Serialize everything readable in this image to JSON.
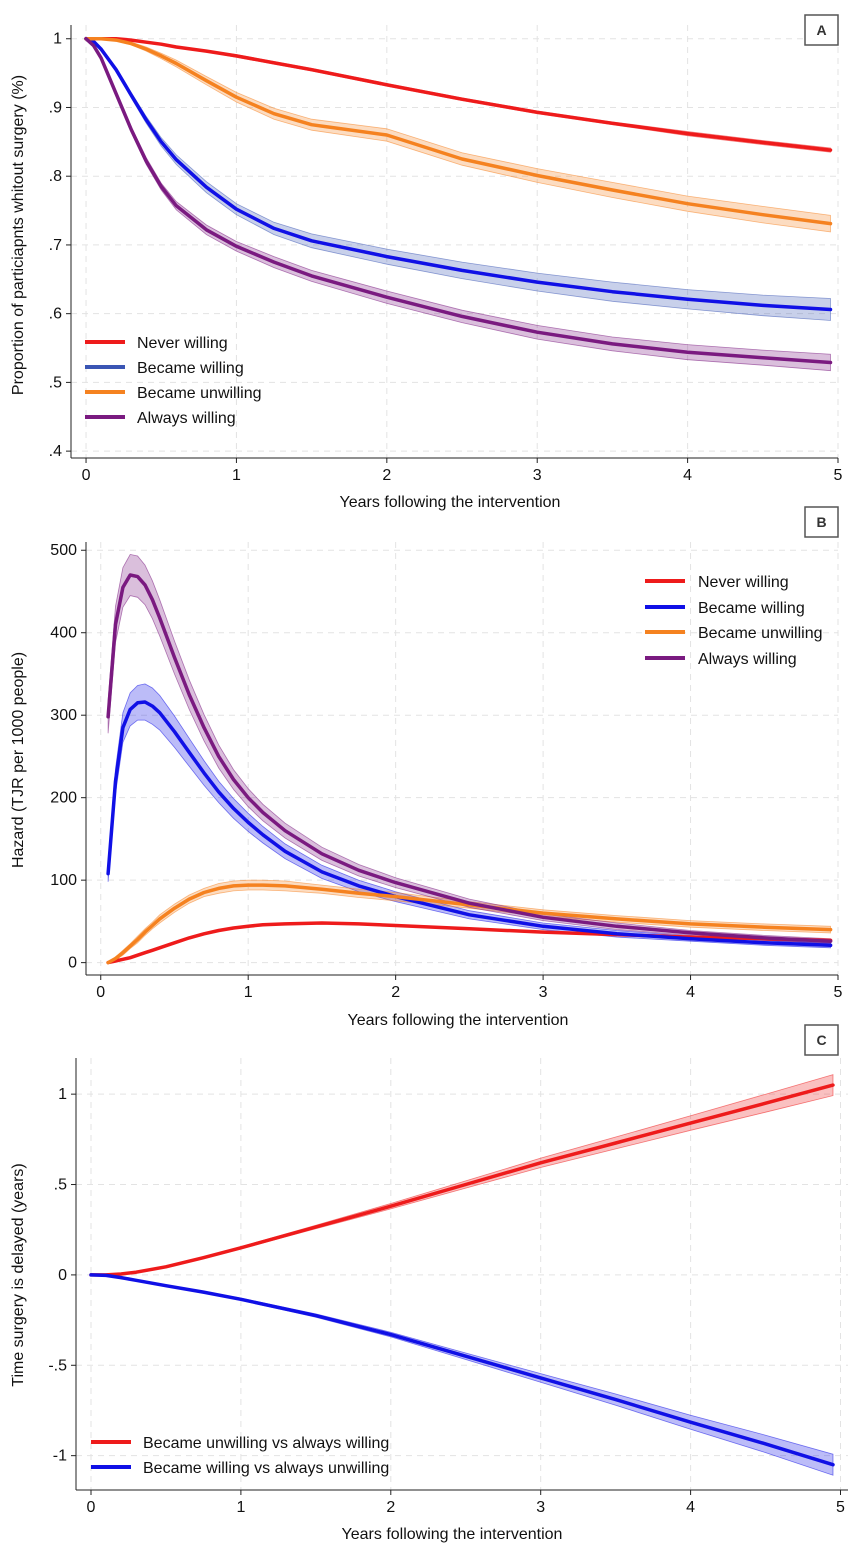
{
  "chart_data": [
    {
      "panel": "A",
      "type": "line",
      "xlabel": "Years following the intervention",
      "ylabel": "Proportion of particiapnts whitout surgery (%)",
      "xlim": [
        -0.1,
        5.0
      ],
      "ylim": [
        0.39,
        1.02
      ],
      "xticks": [
        0,
        1,
        2,
        3,
        4,
        5
      ],
      "xtick_labels": [
        "0",
        "1",
        "2",
        "3",
        "4",
        "5"
      ],
      "yticks": [
        0.4,
        0.5,
        0.6,
        0.7,
        0.8,
        0.9,
        1.0
      ],
      "ytick_labels": [
        ".4",
        ".5",
        ".6",
        ".7",
        ".8",
        ".9",
        "1"
      ],
      "grid": true,
      "legend_position": "bottom-left",
      "x": [
        0,
        0.05,
        0.1,
        0.2,
        0.3,
        0.4,
        0.5,
        0.6,
        0.8,
        1.0,
        1.25,
        1.5,
        2.0,
        2.5,
        3.0,
        3.5,
        4.0,
        4.5,
        4.95
      ],
      "series": [
        {
          "name": "Never willing",
          "color": "#ee1b1b",
          "values": [
            1.0,
            1.0,
            1.0,
            1.0,
            0.998,
            0.995,
            0.992,
            0.988,
            0.982,
            0.975,
            0.965,
            0.955,
            0.933,
            0.912,
            0.893,
            0.877,
            0.862,
            0.849,
            0.838
          ],
          "ci_halfwidth": [
            0,
            0,
            0,
            0,
            0.001,
            0.001,
            0.001,
            0.001,
            0.001,
            0.002,
            0.002,
            0.002,
            0.002,
            0.002,
            0.002,
            0.002,
            0.003,
            0.003,
            0.003
          ]
        },
        {
          "name": "Became willing",
          "color": "#3a55b4",
          "line_color": "#1010e6",
          "values": [
            1.0,
            0.996,
            0.985,
            0.955,
            0.918,
            0.882,
            0.85,
            0.824,
            0.784,
            0.752,
            0.724,
            0.706,
            0.683,
            0.663,
            0.646,
            0.632,
            0.621,
            0.612,
            0.606
          ],
          "ci_halfwidth": [
            0,
            0.001,
            0.002,
            0.003,
            0.004,
            0.005,
            0.006,
            0.007,
            0.008,
            0.008,
            0.009,
            0.01,
            0.011,
            0.012,
            0.013,
            0.014,
            0.014,
            0.015,
            0.016
          ]
        },
        {
          "name": "Became unwilling",
          "color": "#f58220",
          "values": [
            1.0,
            1.0,
            1.0,
            0.998,
            0.993,
            0.985,
            0.975,
            0.964,
            0.939,
            0.915,
            0.891,
            0.875,
            0.86,
            0.825,
            0.801,
            0.78,
            0.76,
            0.744,
            0.731
          ],
          "ci_halfwidth": [
            0,
            0,
            0,
            0.001,
            0.002,
            0.003,
            0.004,
            0.005,
            0.006,
            0.007,
            0.008,
            0.008,
            0.009,
            0.009,
            0.01,
            0.011,
            0.011,
            0.012,
            0.012
          ]
        },
        {
          "name": "Always willing",
          "color": "#7a1a80",
          "values": [
            1.0,
            0.99,
            0.972,
            0.92,
            0.868,
            0.822,
            0.785,
            0.757,
            0.722,
            0.698,
            0.675,
            0.655,
            0.624,
            0.596,
            0.573,
            0.556,
            0.544,
            0.536,
            0.529
          ],
          "ci_halfwidth": [
            0,
            0.001,
            0.002,
            0.003,
            0.004,
            0.005,
            0.005,
            0.006,
            0.007,
            0.007,
            0.008,
            0.008,
            0.009,
            0.009,
            0.01,
            0.01,
            0.011,
            0.011,
            0.012
          ]
        }
      ]
    },
    {
      "panel": "B",
      "type": "line",
      "xlabel": "Years following the intervention",
      "ylabel": "Hazard (TJR per 1000 people)",
      "xlim": [
        -0.1,
        5.0
      ],
      "ylim": [
        -15,
        510
      ],
      "xticks": [
        0,
        1,
        2,
        3,
        4,
        5
      ],
      "xtick_labels": [
        "0",
        "1",
        "2",
        "3",
        "4",
        "5"
      ],
      "yticks": [
        0,
        100,
        200,
        300,
        400,
        500
      ],
      "ytick_labels": [
        "0",
        "100",
        "200",
        "300",
        "400",
        "500"
      ],
      "grid": true,
      "legend_position": "top-right",
      "x": [
        0.05,
        0.1,
        0.15,
        0.2,
        0.25,
        0.3,
        0.35,
        0.4,
        0.5,
        0.6,
        0.7,
        0.8,
        0.9,
        1.0,
        1.1,
        1.25,
        1.5,
        1.75,
        2.0,
        2.5,
        3.0,
        3.5,
        4.0,
        4.5,
        4.95
      ],
      "series": [
        {
          "name": "Never willing",
          "color": "#ee1b1b",
          "values": [
            0,
            2,
            4,
            6,
            9,
            12,
            15,
            18,
            24,
            30,
            35,
            39,
            42,
            44,
            46,
            47,
            48,
            47,
            45,
            41,
            37,
            34,
            31,
            29,
            27
          ],
          "ci_halfwidth": [
            0,
            0,
            0,
            0,
            0,
            1,
            1,
            1,
            1,
            1,
            1,
            1,
            1,
            1,
            1,
            1,
            1,
            1,
            1,
            1,
            1,
            1,
            1,
            1,
            1
          ]
        },
        {
          "name": "Became willing",
          "color": "#1010e6",
          "values": [
            108,
            220,
            285,
            307,
            315,
            316,
            311,
            303,
            280,
            255,
            230,
            207,
            187,
            170,
            155,
            135,
            110,
            93,
            80,
            58,
            44,
            35,
            29,
            24,
            21
          ],
          "ci_halfwidth": [
            10,
            15,
            18,
            20,
            21,
            22,
            22,
            21,
            19,
            17,
            15,
            13,
            12,
            11,
            10,
            9,
            8,
            7,
            6,
            5,
            4,
            4,
            3,
            3,
            3
          ]
        },
        {
          "name": "Became unwilling",
          "color": "#f58220",
          "values": [
            0,
            5,
            12,
            20,
            28,
            37,
            45,
            53,
            66,
            77,
            85,
            90,
            93,
            94,
            94,
            93,
            89,
            84,
            80,
            70,
            60,
            53,
            47,
            43,
            40
          ],
          "ci_halfwidth": [
            1,
            2,
            3,
            3,
            4,
            4,
            4,
            5,
            5,
            5,
            5,
            6,
            6,
            6,
            6,
            6,
            5,
            5,
            5,
            4,
            4,
            4,
            4,
            4,
            4
          ]
        },
        {
          "name": "Always willing",
          "color": "#7a1a80",
          "values": [
            298,
            410,
            455,
            470,
            468,
            458,
            440,
            418,
            370,
            325,
            285,
            250,
            222,
            200,
            182,
            160,
            132,
            112,
            97,
            72,
            55,
            44,
            36,
            30,
            26
          ],
          "ci_halfwidth": [
            20,
            22,
            24,
            25,
            25,
            24,
            23,
            22,
            20,
            18,
            16,
            14,
            12,
            11,
            10,
            9,
            8,
            7,
            6,
            5,
            4,
            4,
            3,
            3,
            3
          ]
        }
      ]
    },
    {
      "panel": "C",
      "type": "line",
      "xlabel": "Years following the intervention",
      "ylabel": "Time surgery is delayed (years)",
      "xlim": [
        -0.1,
        5.05
      ],
      "ylim": [
        -1.19,
        1.2
      ],
      "xticks": [
        0,
        1,
        2,
        3,
        4,
        5
      ],
      "xtick_labels": [
        "0",
        "1",
        "2",
        "3",
        "4",
        "5"
      ],
      "yticks": [
        -1,
        -0.5,
        0,
        0.5,
        1
      ],
      "ytick_labels": [
        "-1",
        "-.5",
        "0",
        ".5",
        "1"
      ],
      "grid": true,
      "legend_position": "bottom-left",
      "x": [
        0,
        0.1,
        0.2,
        0.3,
        0.5,
        0.75,
        1.0,
        1.5,
        2.0,
        2.5,
        3.0,
        3.5,
        4.0,
        4.5,
        4.95
      ],
      "series": [
        {
          "name": "Became unwilling vs always willing",
          "color": "#ee1b1b",
          "values": [
            0,
            0.0,
            0.005,
            0.015,
            0.045,
            0.095,
            0.15,
            0.265,
            0.38,
            0.5,
            0.62,
            0.73,
            0.84,
            0.95,
            1.05
          ],
          "ci_halfwidth": [
            0,
            0,
            0,
            0.001,
            0.002,
            0.004,
            0.006,
            0.01,
            0.015,
            0.02,
            0.026,
            0.033,
            0.04,
            0.05,
            0.058
          ]
        },
        {
          "name": "Became willing vs always unwilling",
          "color": "#1010e6",
          "values": [
            0,
            -0.003,
            -0.015,
            -0.03,
            -0.06,
            -0.095,
            -0.135,
            -0.225,
            -0.33,
            -0.45,
            -0.57,
            -0.69,
            -0.815,
            -0.935,
            -1.05
          ],
          "ci_halfwidth": [
            0,
            0,
            0.001,
            0.002,
            0.003,
            0.004,
            0.006,
            0.009,
            0.013,
            0.018,
            0.024,
            0.031,
            0.039,
            0.048,
            0.058
          ]
        }
      ]
    }
  ]
}
